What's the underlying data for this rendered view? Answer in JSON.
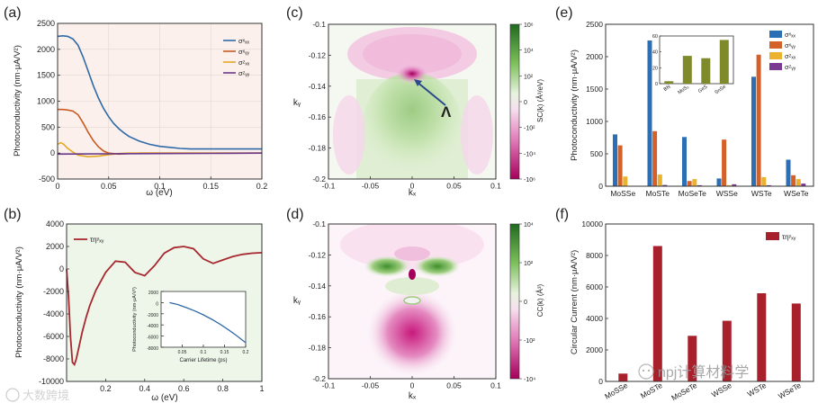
{
  "figure": {
    "panel_labels": [
      "(a)",
      "(b)",
      "(c)",
      "(d)",
      "(e)",
      "(f)"
    ],
    "watermark_left": "大数跨境",
    "watermark_right": "npj计算材料学"
  },
  "chart_data": [
    {
      "id": "a",
      "type": "line",
      "title": "",
      "xlabel": "ω (eV)",
      "ylabel": "Photoconductivity (nm·μA/V²)",
      "xlim": [
        0,
        0.2
      ],
      "ylim": [
        -500,
        2500
      ],
      "xticks": [
        0,
        0.05,
        0.1,
        0.15,
        0.2
      ],
      "xtick_labels": [
        "0",
        "0.05",
        "0.1",
        "0.15",
        "0.2"
      ],
      "yticks": [
        -500,
        0,
        500,
        1000,
        1500,
        2000,
        2500
      ],
      "ytick_labels": [
        "-500",
        "0",
        "500",
        "1000",
        "1500",
        "2000",
        "2500"
      ],
      "legend_position": "top-right",
      "series": [
        {
          "name": "σˣₓₓ",
          "color": "#2f6aa8",
          "x": [
            0,
            0.005,
            0.01,
            0.015,
            0.02,
            0.025,
            0.03,
            0.035,
            0.04,
            0.045,
            0.05,
            0.055,
            0.06,
            0.065,
            0.07,
            0.08,
            0.09,
            0.1,
            0.11,
            0.12,
            0.13,
            0.14,
            0.15,
            0.16,
            0.17,
            0.18,
            0.19,
            0.2
          ],
          "y": [
            2250,
            2260,
            2250,
            2200,
            2080,
            1850,
            1580,
            1300,
            1060,
            860,
            700,
            570,
            470,
            390,
            320,
            230,
            170,
            130,
            110,
            90,
            80,
            80,
            80,
            80,
            80,
            80,
            80,
            80
          ]
        },
        {
          "name": "σˣᵧᵧ",
          "color": "#c85a22",
          "x": [
            0,
            0.005,
            0.01,
            0.015,
            0.02,
            0.025,
            0.03,
            0.035,
            0.04,
            0.045,
            0.05,
            0.06,
            0.07,
            0.08,
            0.1,
            0.12,
            0.15,
            0.2
          ],
          "y": [
            840,
            840,
            830,
            810,
            740,
            580,
            400,
            240,
            120,
            40,
            0,
            -20,
            -10,
            0,
            0,
            0,
            0,
            0
          ]
        },
        {
          "name": "σᶻₓₓ",
          "color": "#e3a823",
          "x": [
            0,
            0.003,
            0.006,
            0.01,
            0.015,
            0.02,
            0.03,
            0.04,
            0.05,
            0.06,
            0.07,
            0.08,
            0.1,
            0.12,
            0.15,
            0.2
          ],
          "y": [
            170,
            200,
            170,
            90,
            20,
            -40,
            -70,
            -60,
            -30,
            -10,
            0,
            0,
            0,
            0,
            0,
            0
          ]
        },
        {
          "name": "σᶻᵧᵧ",
          "color": "#6b3a8c",
          "x": [
            0,
            0.05,
            0.1,
            0.15,
            0.2
          ],
          "y": [
            -20,
            -15,
            -10,
            -5,
            0
          ]
        }
      ]
    },
    {
      "id": "b",
      "type": "line",
      "title": "",
      "xlabel": "ω (eV)",
      "ylabel": "Photoconductivity (nm·μA/V²)",
      "xlim": [
        0,
        1
      ],
      "ylim": [
        -10000,
        4000
      ],
      "xticks": [
        0.2,
        0.4,
        0.6,
        0.8,
        1
      ],
      "xtick_labels": [
        "0.2",
        "0.4",
        "0.6",
        "0.8",
        "1"
      ],
      "yticks": [
        -8000,
        -6000,
        -4000,
        -2000,
        0,
        2000,
        4000
      ],
      "ytick_labels": [
        "-8000",
        "-6000",
        "-4000",
        "-2000",
        "0",
        "2000",
        "4000"
      ],
      "ytick_bottom_label": "-10000",
      "legend_position": "top-left",
      "series": [
        {
          "name": "τηʸₓᵧ",
          "color": "#a8282f",
          "x": [
            0,
            0.01,
            0.02,
            0.03,
            0.04,
            0.05,
            0.06,
            0.07,
            0.08,
            0.1,
            0.12,
            0.15,
            0.2,
            0.25,
            0.3,
            0.35,
            0.4,
            0.45,
            0.5,
            0.55,
            0.6,
            0.65,
            0.7,
            0.75,
            0.8,
            0.85,
            0.9,
            0.95,
            1.0
          ],
          "y": [
            0,
            -2500,
            -6000,
            -8300,
            -8500,
            -8000,
            -7200,
            -6400,
            -5600,
            -4300,
            -3200,
            -1900,
            -300,
            700,
            600,
            -300,
            -600,
            300,
            1400,
            1900,
            2000,
            1800,
            900,
            500,
            800,
            1100,
            1300,
            1400,
            1450
          ]
        }
      ],
      "inset": {
        "type": "line",
        "xlabel": "Carrier Lifetime (ps)",
        "ylabel": "Photoconductivity (nm·μA/V²)",
        "xlim": [
          0,
          0.2
        ],
        "ylim": [
          -8000,
          2000
        ],
        "xticks": [
          0.05,
          0.1,
          0.15,
          0.2
        ],
        "xtick_labels": [
          "0.05",
          "0.1",
          "0.15",
          "0.2"
        ],
        "yticks": [
          -8000,
          -6000,
          -4000,
          -2000,
          0,
          2000
        ],
        "ytick_labels": [
          "-8000",
          "-6000",
          "-4000",
          "-2000",
          "0",
          "2000"
        ],
        "series": [
          {
            "name": "lifetime",
            "color": "#2f6aa8",
            "x": [
              0.02,
              0.04,
              0.06,
              0.08,
              0.1,
              0.12,
              0.14,
              0.16,
              0.18,
              0.2
            ],
            "y": [
              0,
              -350,
              -900,
              -1500,
              -2200,
              -3000,
              -3900,
              -4900,
              -6000,
              -7200
            ]
          }
        ]
      }
    },
    {
      "id": "c",
      "type": "heatmap",
      "xlabel": "kₓ",
      "ylabel": "kᵧ",
      "xlim": [
        -0.1,
        0.1
      ],
      "ylim": [
        -0.2,
        -0.1
      ],
      "xticks": [
        -0.1,
        -0.05,
        0,
        0.05,
        0.1
      ],
      "xtick_labels": [
        "-0.1",
        "-0.05",
        "0",
        "0.05",
        "0.1"
      ],
      "yticks": [
        -0.1,
        -0.12,
        -0.14,
        -0.16,
        -0.18,
        -0.2
      ],
      "ytick_labels": [
        "-0.1",
        "-0.12",
        "-0.14",
        "-0.16",
        "-0.18",
        "-0.2"
      ],
      "colorbar_label": "SC(k) (Å³/eV)",
      "colorbar_ticks": [
        "10⁶",
        "10⁴",
        "10²",
        "0",
        "-10²",
        "-10⁴",
        "-10⁶"
      ],
      "annotation": {
        "text": "Λ",
        "kx": 0,
        "ky": -0.135
      }
    },
    {
      "id": "d",
      "type": "heatmap",
      "xlabel": "kₓ",
      "ylabel": "kᵧ",
      "xlim": [
        -0.1,
        0.1
      ],
      "ylim": [
        -0.2,
        -0.1
      ],
      "xticks": [
        -0.1,
        -0.05,
        0,
        0.05,
        0.1
      ],
      "xtick_labels": [
        "-0.1",
        "-0.05",
        "0",
        "0.05",
        "0.1"
      ],
      "yticks": [
        -0.1,
        -0.12,
        -0.14,
        -0.16,
        -0.18,
        -0.2
      ],
      "ytick_labels": [
        "-0.1",
        "-0.12",
        "-0.14",
        "-0.16",
        "-0.18",
        "-0.2"
      ],
      "colorbar_label": "CC(k) (Å³)",
      "colorbar_ticks": [
        "10⁴",
        "10²",
        "0",
        "-10²",
        "-10⁴"
      ]
    },
    {
      "id": "e",
      "type": "bar",
      "xlabel": "",
      "ylabel": "Photoconductivity (nm·μA/V²)",
      "ylim": [
        0,
        2500
      ],
      "yticks": [
        0,
        500,
        1000,
        1500,
        2000,
        2500
      ],
      "ytick_labels": [
        "0",
        "500",
        "1000",
        "1500",
        "2000",
        "2500"
      ],
      "categories": [
        "MoSSe",
        "MoSTe",
        "MoSeTe",
        "WSSe",
        "WSTe",
        "WSeTe"
      ],
      "legend_position": "top-right",
      "series": [
        {
          "name": "σˣₓₓ",
          "color": "#2d6fb5",
          "values": [
            800,
            2250,
            760,
            120,
            1690,
            410
          ]
        },
        {
          "name": "σˣᵧᵧ",
          "color": "#d4602a",
          "values": [
            630,
            850,
            80,
            720,
            2030,
            170
          ]
        },
        {
          "name": "σᶻₓₓ",
          "color": "#eab22f",
          "values": [
            150,
            180,
            110,
            15,
            140,
            110
          ]
        },
        {
          "name": "σᶻᵧᵧ",
          "color": "#7a3a91",
          "values": [
            5,
            20,
            15,
            30,
            15,
            40
          ]
        }
      ],
      "inset": {
        "type": "bar",
        "categories": [
          "BN",
          "MoS₂",
          "GeS",
          "SnSe"
        ],
        "values": [
          3,
          35,
          32,
          55
        ],
        "color": "#7f8a2a",
        "ylim": [
          0,
          60
        ],
        "yticks": [
          0,
          20,
          40,
          60
        ],
        "ytick_labels": [
          "0",
          "20",
          "40",
          "60"
        ]
      }
    },
    {
      "id": "f",
      "type": "bar",
      "xlabel": "",
      "ylabel": "Circular Current (nm·μA/V²)",
      "ylim": [
        0,
        10000
      ],
      "yticks": [
        0,
        2000,
        4000,
        6000,
        8000,
        10000
      ],
      "ytick_labels": [
        "0",
        "2000",
        "4000",
        "6000",
        "8000",
        "10000"
      ],
      "categories": [
        "MoSSe",
        "MoSTe",
        "MoSeTe",
        "WSSe",
        "WSTe",
        "WSeTe"
      ],
      "legend_position": "top-right",
      "series": [
        {
          "name": "τηʸₓᵧ",
          "color": "#a8202c",
          "values": [
            500,
            8600,
            2900,
            3850,
            5600,
            4950
          ]
        }
      ]
    }
  ]
}
